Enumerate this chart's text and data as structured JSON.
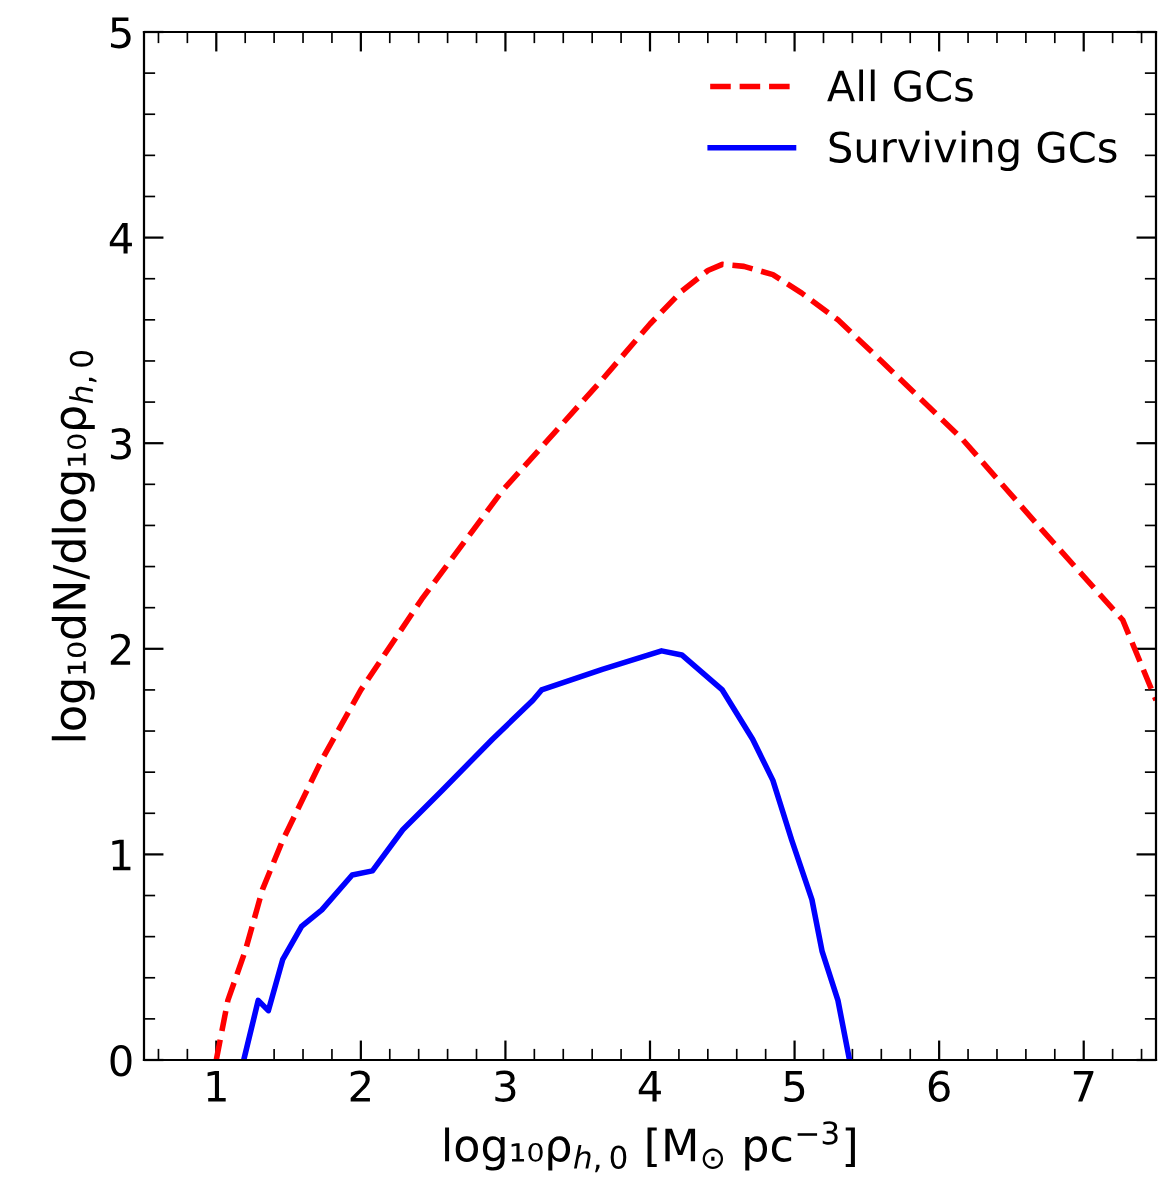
{
  "chart_data": {
    "type": "line",
    "xlabel": "log₁₀ρ$_{h,0}$ [M$_{⊙}$ pc$^{−3}$]",
    "ylabel": "log₁₀dN/dlog₁₀ρ$_{h,0}$",
    "xlim": [
      0.5,
      7.5
    ],
    "ylim": [
      0,
      5
    ],
    "xticks": [
      1,
      2,
      3,
      4,
      5,
      6,
      7
    ],
    "yticks": [
      0,
      1,
      2,
      3,
      4,
      5
    ],
    "legend": "top right",
    "grid": false,
    "series": [
      {
        "name": "All GCs",
        "color": "#ff0000",
        "line_style": "dashed",
        "x": [
          1.0,
          1.08,
          1.2,
          1.32,
          1.46,
          1.73,
          2.0,
          2.42,
          2.98,
          3.67,
          4.0,
          4.22,
          4.4,
          4.5,
          4.65,
          4.85,
          5.05,
          5.3,
          5.6,
          6.16,
          6.71,
          7.27,
          7.5
        ],
        "values": [
          0,
          0.29,
          0.53,
          0.83,
          1.07,
          1.46,
          1.8,
          2.24,
          2.77,
          3.31,
          3.58,
          3.74,
          3.84,
          3.87,
          3.86,
          3.82,
          3.73,
          3.6,
          3.4,
          3.02,
          2.58,
          2.14,
          1.75
        ]
      },
      {
        "name": "Surviving GCs",
        "color": "#0000ff",
        "line_style": "solid",
        "x": [
          1.19,
          1.29,
          1.36,
          1.46,
          1.59,
          1.73,
          1.94,
          2.08,
          2.29,
          2.56,
          2.91,
          3.19,
          3.25,
          3.67,
          4.08,
          4.22,
          4.5,
          4.71,
          4.85,
          4.98,
          5.12,
          5.19,
          5.3,
          5.38
        ],
        "values": [
          0,
          0.29,
          0.24,
          0.49,
          0.65,
          0.73,
          0.9,
          0.92,
          1.12,
          1.31,
          1.56,
          1.75,
          1.8,
          1.9,
          1.99,
          1.97,
          1.8,
          1.56,
          1.36,
          1.07,
          0.78,
          0.53,
          0.29,
          0
        ]
      }
    ]
  }
}
